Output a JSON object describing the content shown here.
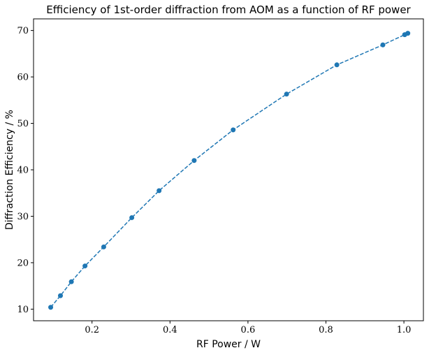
{
  "chart_data": {
    "type": "line",
    "title": "Efficiency of 1st-order diffraction from AOM as a function of RF power",
    "xlabel": "RF Power / W",
    "ylabel": "Diffraction Efficiency / %",
    "xlim": [
      0.05,
      1.05
    ],
    "ylim": [
      7.5,
      72.5
    ],
    "xticks": [
      0.2,
      0.4,
      0.6,
      0.8,
      1.0
    ],
    "xtick_labels": [
      "0.2",
      "0.4",
      "0.6",
      "0.8",
      "1.0"
    ],
    "yticks": [
      10,
      20,
      30,
      40,
      50,
      60,
      70
    ],
    "ytick_labels": [
      "10",
      "20",
      "30",
      "40",
      "50",
      "60",
      "70"
    ],
    "grid": false,
    "series": [
      {
        "color": "#1f77b4",
        "line_style": "dashed",
        "marker": "circle",
        "x": [
          0.094,
          0.119,
          0.147,
          0.182,
          0.23,
          0.302,
          0.372,
          0.462,
          0.562,
          0.699,
          0.828,
          0.946,
          1.002,
          1.01
        ],
        "y": [
          10.4,
          12.9,
          15.9,
          19.3,
          23.4,
          29.7,
          35.5,
          42.0,
          48.6,
          56.3,
          62.6,
          66.9,
          69.1,
          69.4
        ]
      }
    ]
  }
}
